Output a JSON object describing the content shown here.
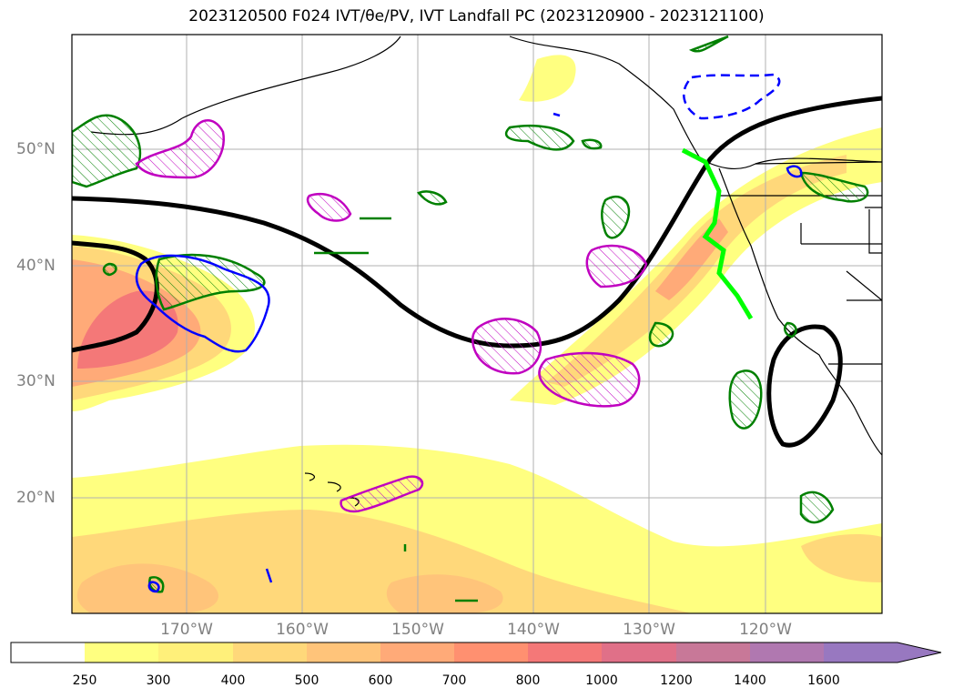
{
  "title": "2023120500 F024 IVT/θe/PV, IVT Landfall PC (2023120900 - 2023121100)",
  "map": {
    "lat_labels": [
      "50°N",
      "40°N",
      "30°N",
      "20°N"
    ],
    "lon_labels": [
      "170°W",
      "160°W",
      "150°W",
      "140°W",
      "130°W",
      "120°W"
    ],
    "colors": {
      "coastline": "#000000",
      "theta_e_contour": "#000000",
      "pv_positive": "#008000",
      "pv_negative": "#0000ff",
      "pc_contour": "#c000c0",
      "landfall_line": "#00ff00",
      "grid": "#b0b0b0"
    }
  },
  "colorbar": {
    "labels": [
      "250",
      "300",
      "400",
      "500",
      "600",
      "700",
      "800",
      "1000",
      "1200",
      "1400",
      "1600"
    ],
    "colors": [
      "#ffff80",
      "#fff07a",
      "#ffd87a",
      "#ffc47a",
      "#ffaa78",
      "#ff9070",
      "#f47878",
      "#e07088",
      "#c87898",
      "#b078b0",
      "#9878c0"
    ],
    "extend": "max"
  }
}
